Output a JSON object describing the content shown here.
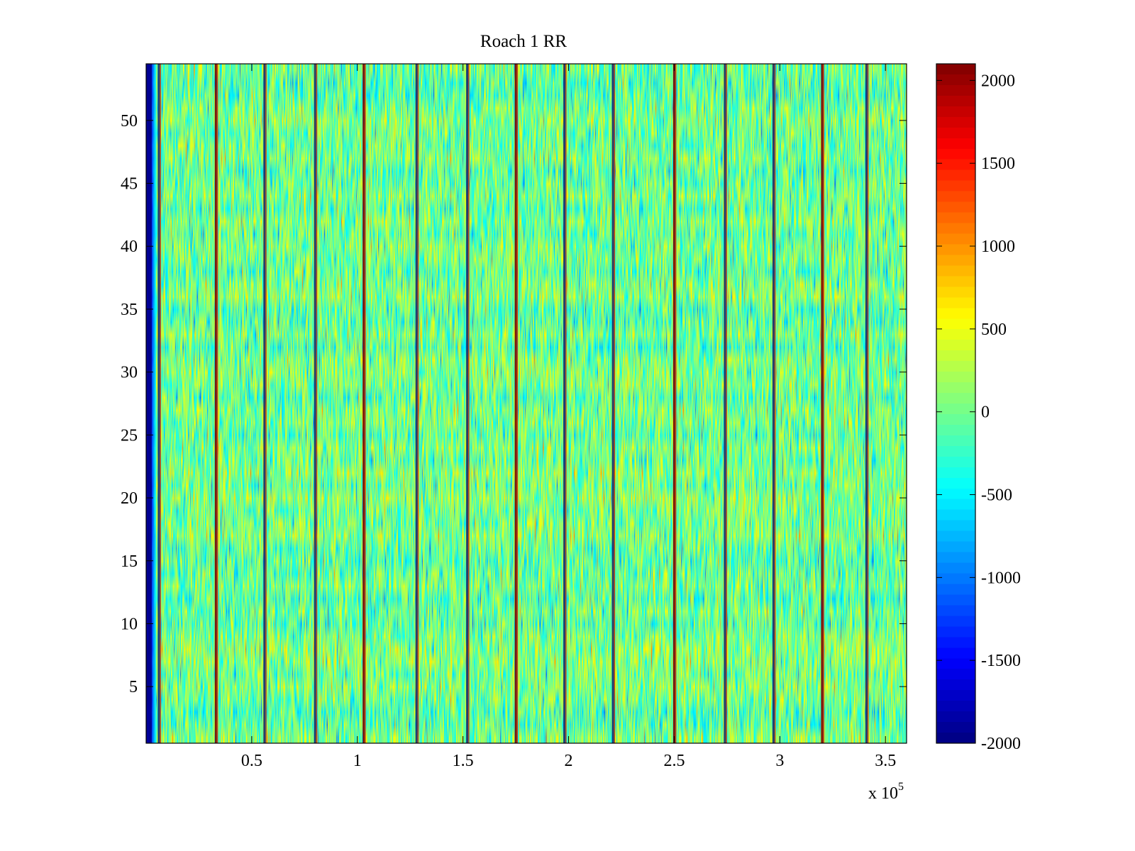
{
  "chart_data": {
    "type": "heatmap",
    "title": "Roach 1 RR",
    "xlabel": "",
    "ylabel": "",
    "x_multiplier_base": "x 10",
    "x_multiplier_exponent": "5",
    "xlim": [
      0,
      360000
    ],
    "ylim": [
      0.5,
      54.5
    ],
    "x_ticks": [
      0.5,
      1,
      1.5,
      2,
      2.5,
      3,
      3.5
    ],
    "x_tick_labels": [
      "0.5",
      "1",
      "1.5",
      "2",
      "2.5",
      "3",
      "3.5"
    ],
    "y_ticks": [
      5,
      10,
      15,
      20,
      25,
      30,
      35,
      40,
      45,
      50
    ],
    "y_tick_labels": [
      "5",
      "10",
      "15",
      "20",
      "25",
      "30",
      "35",
      "40",
      "45",
      "50"
    ],
    "rows": 54,
    "colormap": "jet",
    "clim": [
      -2000,
      2100
    ],
    "colorbar_ticks": [
      2000,
      1500,
      1000,
      500,
      0,
      -500,
      -1000,
      -1500,
      -2000
    ],
    "colorbar_tick_labels": [
      "2000",
      "1500",
      "1000",
      "500",
      "0",
      "-500",
      "-1000",
      "-1500",
      "-2000"
    ],
    "typical_value_range": [
      -700,
      700
    ],
    "left_edge_value": -2000,
    "vertical_stripes_x": [
      6000,
      33000,
      56000,
      80000,
      103000,
      128000,
      152000,
      175000,
      198000,
      221000,
      250000,
      274000,
      297000,
      320000,
      341000
    ],
    "colors": {
      "background": "#ffffff",
      "axes": "#000000"
    }
  }
}
